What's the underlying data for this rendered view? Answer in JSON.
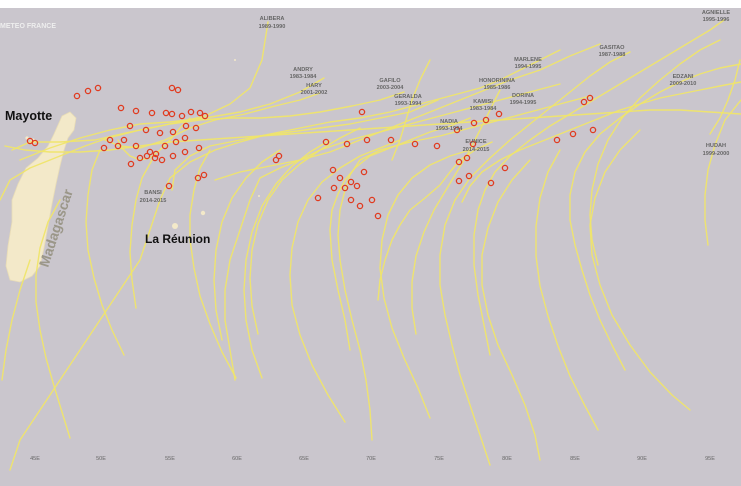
{
  "credit": "METEO FRANCE",
  "colors": {
    "ocean": "#cac6cd",
    "land": "#f3e9c9",
    "track": "#efe56a",
    "marker": "#e03a1f",
    "label": "#6a6a6a"
  },
  "places": {
    "mayotte": "Mayotte",
    "madagascar": "Madagascar",
    "reunion": "La Réunion"
  },
  "longitude_ticks": [
    "45E",
    "50E",
    "55E",
    "60E",
    "65E",
    "70E",
    "75E",
    "80E",
    "85E",
    "90E",
    "95E"
  ],
  "storms": [
    {
      "name": "ALIBERA",
      "years": "1989-1990"
    },
    {
      "name": "ANDRY",
      "years": "1983-1984"
    },
    {
      "name": "HARY",
      "years": "2001-2002"
    },
    {
      "name": "GAFILO",
      "years": "2003-2004"
    },
    {
      "name": "GERALDA",
      "years": "1993-1994"
    },
    {
      "name": "MARLENE",
      "years": "1994-1995"
    },
    {
      "name": "HONORININA",
      "years": "1985-1986"
    },
    {
      "name": "KAMISI",
      "years": "1983-1984"
    },
    {
      "name": "DORINA",
      "years": "1994-1995"
    },
    {
      "name": "NADIA",
      "years": "1993-1994"
    },
    {
      "name": "EUNICE",
      "years": "2014-2015"
    },
    {
      "name": "GASITAO",
      "years": "1987-1988"
    },
    {
      "name": "AGNIELLE",
      "years": "1995-1996"
    },
    {
      "name": "EDZANI",
      "years": "2009-2010"
    },
    {
      "name": "HUDAH",
      "years": "1999-2000"
    },
    {
      "name": "BANSI",
      "years": "2014-2015"
    }
  ]
}
